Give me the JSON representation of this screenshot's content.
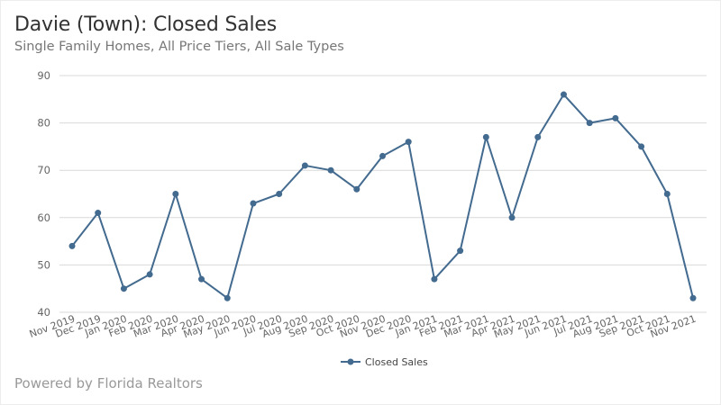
{
  "header": {
    "title": "Davie (Town): Closed Sales",
    "subtitle": "Single Family Homes, All Price Tiers, All Sale Types"
  },
  "footer": {
    "text": "Powered by Florida Realtors"
  },
  "colors": {
    "series": "#436a8f",
    "grid": "#d9d9d9",
    "text": "#333333"
  },
  "legend": {
    "label": "Closed Sales"
  },
  "chart_data": {
    "type": "line",
    "title": "Davie (Town): Closed Sales",
    "subtitle": "Single Family Homes, All Price Tiers, All Sale Types",
    "xlabel": "",
    "ylabel": "",
    "ylim": [
      40,
      90
    ],
    "yticks": [
      40,
      50,
      60,
      70,
      80,
      90
    ],
    "grid": true,
    "legend_position": "bottom",
    "categories": [
      "Nov 2019",
      "Dec 2019",
      "Jan 2020",
      "Feb 2020",
      "Mar 2020",
      "Apr 2020",
      "May 2020",
      "Jun 2020",
      "Jul 2020",
      "Aug 2020",
      "Sep 2020",
      "Oct 2020",
      "Nov 2020",
      "Dec 2020",
      "Jan 2021",
      "Feb 2021",
      "Mar 2021",
      "Apr 2021",
      "May 2021",
      "Jun 2021",
      "Jul 2021",
      "Aug 2021",
      "Sep 2021",
      "Oct 2021",
      "Nov 2021"
    ],
    "series": [
      {
        "name": "Closed Sales",
        "values": [
          54,
          61,
          45,
          48,
          65,
          47,
          43,
          63,
          65,
          71,
          70,
          66,
          73,
          76,
          47,
          53,
          77,
          60,
          77,
          86,
          80,
          81,
          75,
          65,
          43
        ]
      }
    ]
  }
}
